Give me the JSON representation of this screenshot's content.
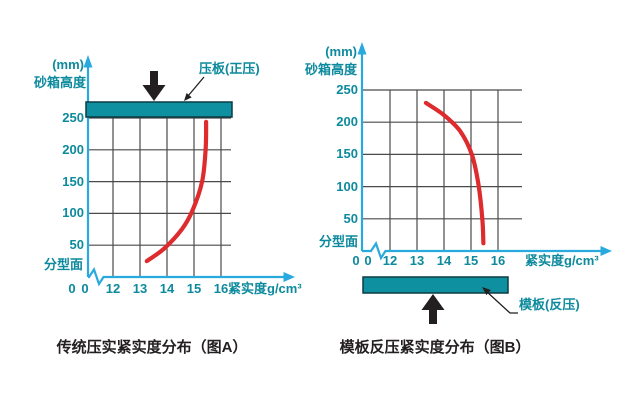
{
  "figure": {
    "charts": [
      {
        "caption": "传统压实紧实度分布（图A）",
        "y_unit": "(mm)",
        "y_title": "砂箱高度",
        "y_ticks": [
          "250",
          "200",
          "150",
          "100",
          "50"
        ],
        "parting_line": "分型面",
        "y_origin": "0",
        "x_origin": "0",
        "x_ticks": [
          "12",
          "13",
          "14",
          "15",
          "16"
        ],
        "x_title": "紧实度g/cm³",
        "component_label": "压板(正压)"
      },
      {
        "caption": "模板反压紧实度分布（图B）",
        "y_unit": "(mm)",
        "y_title": "砂箱高度",
        "y_ticks": [
          "250",
          "200",
          "150",
          "100",
          "50"
        ],
        "parting_line": "分型面",
        "y_origin": "0",
        "x_origin": "0",
        "x_ticks": [
          "12",
          "13",
          "14",
          "15",
          "16"
        ],
        "x_title": "紧实度g/cm³",
        "component_label": "模板(反压)"
      }
    ]
  },
  "colors": {
    "axis": "#29aadf",
    "teal_text": "#0d8a9d",
    "plate_fill": "#0e90a0",
    "plate_border": "#0b3b42",
    "grid": "#4a4a4a",
    "curve": "#dd2b2e",
    "ink": "#231f20"
  },
  "chart_data": [
    {
      "id": "A",
      "type": "line",
      "title": "传统压实紧实度分布（图A）",
      "xlabel": "紧实度g/cm³",
      "ylabel": "砂箱高度(mm)",
      "x_range_shown": [
        12,
        16
      ],
      "y_range_shown": [
        0,
        250
      ],
      "x_axis_break_before": 12,
      "grid": true,
      "annotations": [
        "压板(正压)",
        "分型面"
      ],
      "series": [
        {
          "name": "传统压实紧实度分布",
          "color": "#dd2b2e",
          "points": [
            [
              13.25,
              25
            ],
            [
              13.9,
              45
            ],
            [
              14.55,
              75
            ],
            [
              14.95,
              105
            ],
            [
              15.3,
              150
            ],
            [
              15.43,
              200
            ],
            [
              15.45,
              244
            ]
          ]
        }
      ]
    },
    {
      "id": "B",
      "type": "line",
      "title": "模板反压紧实度分布（图B）",
      "xlabel": "紧实度g/cm³",
      "ylabel": "砂箱高度(mm)",
      "x_range_shown": [
        12,
        16
      ],
      "y_range_shown": [
        0,
        250
      ],
      "x_axis_break_before": 12,
      "grid": true,
      "annotations": [
        "模板(反压)",
        "分型面"
      ],
      "series": [
        {
          "name": "模板反压紧实度分布",
          "color": "#dd2b2e",
          "points": [
            [
              13.33,
              230
            ],
            [
              14.0,
              211
            ],
            [
              14.6,
              186
            ],
            [
              15.03,
              150
            ],
            [
              15.27,
              105
            ],
            [
              15.42,
              50
            ],
            [
              15.46,
              12
            ]
          ]
        }
      ]
    }
  ]
}
